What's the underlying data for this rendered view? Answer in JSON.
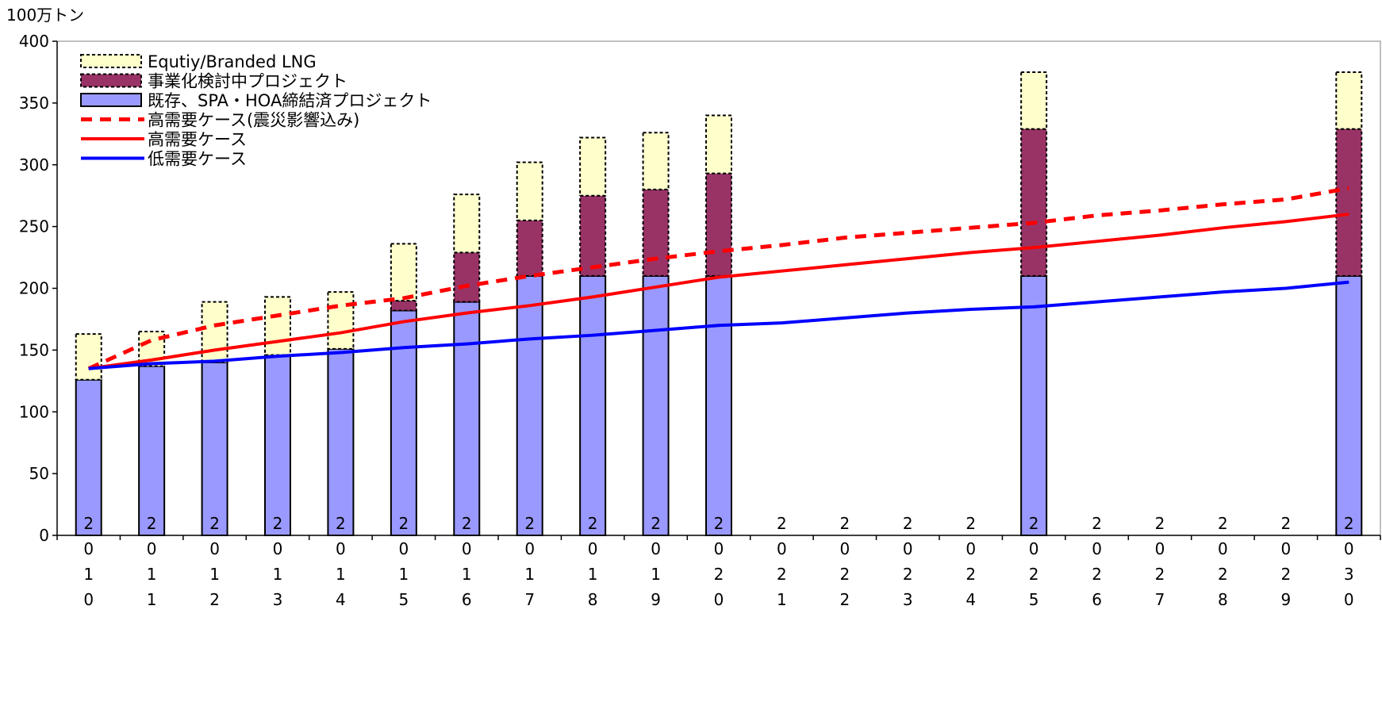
{
  "chart_data": {
    "type": "bar",
    "unit_label": "100万トン",
    "categories": [
      "2010",
      "2011",
      "2012",
      "2013",
      "2014",
      "2015",
      "2016",
      "2017",
      "2018",
      "2019",
      "2020",
      "2021",
      "2022",
      "2023",
      "2024",
      "2025",
      "2026",
      "2027",
      "2028",
      "2029",
      "2030"
    ],
    "ylim": [
      0,
      400
    ],
    "yticks": [
      0,
      50,
      100,
      150,
      200,
      250,
      300,
      350,
      400
    ],
    "stacked_series": [
      {
        "name": "既存、SPA・HOA締結済プロジェクト",
        "color": "#9999ff",
        "border": "solid",
        "values": [
          126,
          137,
          140,
          146,
          151,
          182,
          189,
          210,
          210,
          210,
          210,
          null,
          null,
          null,
          null,
          210,
          null,
          null,
          null,
          null,
          210
        ]
      },
      {
        "name": "事業化検討中プロジェクト",
        "color": "#993366",
        "border": "dashed",
        "values": [
          0,
          0,
          0,
          0,
          0,
          8,
          40,
          45,
          65,
          70,
          83,
          null,
          null,
          null,
          null,
          119,
          null,
          null,
          null,
          null,
          119
        ]
      },
      {
        "name": "Equtiy/Branded LNG",
        "color": "#ffffcc",
        "border": "dashed",
        "values": [
          37,
          28,
          49,
          47,
          46,
          46,
          47,
          47,
          47,
          46,
          47,
          null,
          null,
          null,
          null,
          46,
          null,
          null,
          null,
          null,
          46
        ]
      }
    ],
    "line_series": [
      {
        "name": "高需要ケース(震災影響込み)",
        "color": "#ff0000",
        "style": "dashed",
        "values": [
          135,
          158,
          170,
          178,
          186,
          192,
          202,
          210,
          217,
          224,
          230,
          235,
          241,
          245,
          249,
          253,
          259,
          263,
          268,
          272,
          281
        ]
      },
      {
        "name": "高需要ケース",
        "color": "#ff0000",
        "style": "solid",
        "values": [
          135,
          142,
          150,
          157,
          164,
          173,
          180,
          186,
          193,
          201,
          209,
          214,
          219,
          224,
          229,
          233,
          238,
          243,
          249,
          254,
          260
        ]
      },
      {
        "name": "低需要ケース",
        "color": "#0000ff",
        "style": "solid",
        "values": [
          135,
          139,
          141,
          145,
          148,
          152,
          155,
          159,
          162,
          166,
          170,
          172,
          176,
          180,
          183,
          185,
          189,
          193,
          197,
          200,
          205
        ]
      }
    ],
    "legend_order": [
      {
        "name": "Equtiy/Branded LNG",
        "kind": "box",
        "color": "#ffffcc",
        "border": "dashed"
      },
      {
        "name": "事業化検討中プロジェクト",
        "kind": "box",
        "color": "#993366",
        "border": "dashed"
      },
      {
        "name": "既存、SPA・HOA締結済プロジェクト",
        "kind": "box",
        "color": "#9999ff",
        "border": "solid"
      },
      {
        "name": "高需要ケース(震災影響込み)",
        "kind": "line",
        "color": "#ff0000",
        "style": "dashed"
      },
      {
        "name": "高需要ケース",
        "kind": "line",
        "color": "#ff0000",
        "style": "solid"
      },
      {
        "name": "低需要ケース",
        "kind": "line",
        "color": "#0000ff",
        "style": "solid"
      }
    ],
    "legend_position": "top-left",
    "grid": false
  }
}
